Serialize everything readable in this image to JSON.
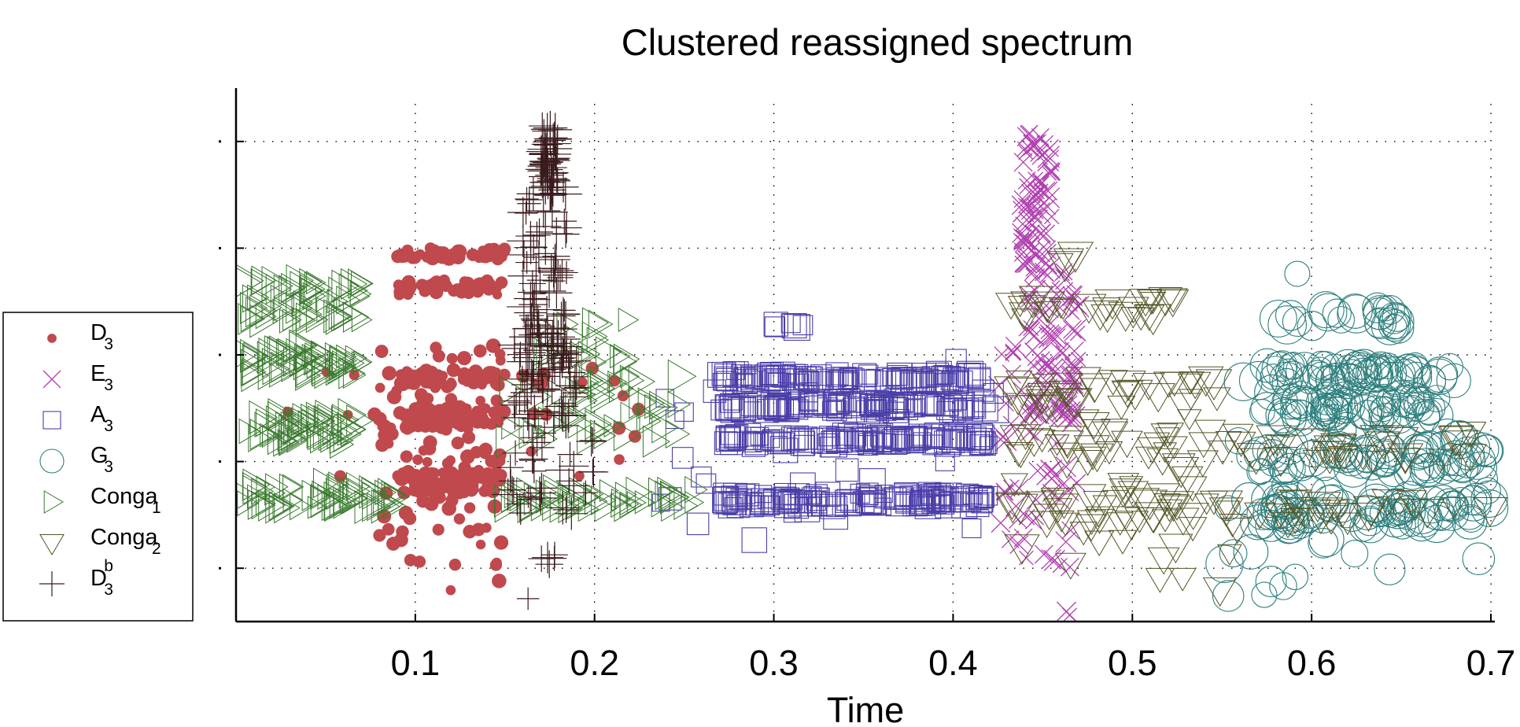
{
  "chart_data": {
    "type": "scatter",
    "title": "Clustered reassigned spectrum",
    "xlabel": "Time",
    "ylabel": "",
    "xlim": [
      0.0,
      0.7
    ],
    "ylim": [
      0.0,
      1.0
    ],
    "x_ticks": [
      0.1,
      0.2,
      0.3,
      0.4,
      0.5,
      0.6,
      0.7
    ],
    "x_tick_labels": [
      "0.1",
      "0.2",
      "0.3",
      "0.4",
      "0.5",
      "0.6",
      "0.7"
    ],
    "y_ticks": [
      0.1,
      0.3,
      0.5,
      0.7,
      0.9
    ],
    "y_tick_labels": [
      "",
      "",
      "",
      "",
      ""
    ],
    "grid": true,
    "legend_position": "left",
    "series": [
      {
        "name": "D",
        "sub": "3",
        "sup": "",
        "marker": "dot",
        "color": "#c0494d",
        "clusters": [
          {
            "x": [
              0.09,
              0.15
            ],
            "y": [
              0.68,
              0.7
            ],
            "n": 45
          },
          {
            "x": [
              0.09,
              0.15
            ],
            "y": [
              0.61,
              0.64
            ],
            "n": 40
          },
          {
            "x": [
              0.09,
              0.15
            ],
            "y": [
              0.44,
              0.47
            ],
            "n": 60
          },
          {
            "x": [
              0.09,
              0.15
            ],
            "y": [
              0.36,
              0.4
            ],
            "n": 60
          },
          {
            "x": [
              0.09,
              0.15
            ],
            "y": [
              0.24,
              0.28
            ],
            "n": 70
          },
          {
            "x": [
              0.08,
              0.15
            ],
            "y": [
              0.05,
              0.52
            ],
            "n": 110
          },
          {
            "x": [
              0.02,
              0.23
            ],
            "y": [
              0.24,
              0.5
            ],
            "n": 30
          }
        ]
      },
      {
        "name": "E",
        "sub": "3",
        "sup": "",
        "marker": "x",
        "color": "#b140b0",
        "clusters": [
          {
            "x": [
              0.438,
              0.455
            ],
            "y": [
              0.65,
              0.92
            ],
            "n": 80
          },
          {
            "x": [
              0.44,
              0.47
            ],
            "y": [
              0.38,
              0.66
            ],
            "n": 70
          },
          {
            "x": [
              0.425,
              0.47
            ],
            "y": [
              0.1,
              0.55
            ],
            "n": 70
          },
          {
            "x": [
              0.46,
              0.465
            ],
            "y": [
              0.01,
              0.02
            ],
            "n": 2
          }
        ]
      },
      {
        "name": "A",
        "sub": "3",
        "sup": "",
        "marker": "square",
        "color": "#4a3ea8",
        "clusters": [
          {
            "x": [
              0.27,
              0.42
            ],
            "y": [
              0.445,
              0.465
            ],
            "n": 110
          },
          {
            "x": [
              0.27,
              0.42
            ],
            "y": [
              0.395,
              0.415
            ],
            "n": 110
          },
          {
            "x": [
              0.27,
              0.42
            ],
            "y": [
              0.33,
              0.35
            ],
            "n": 110
          },
          {
            "x": [
              0.27,
              0.42
            ],
            "y": [
              0.215,
              0.24
            ],
            "n": 130
          },
          {
            "x": [
              0.29,
              0.32
            ],
            "y": [
              0.55,
              0.56
            ],
            "n": 6
          },
          {
            "x": [
              0.23,
              0.43
            ],
            "y": [
              0.14,
              0.5
            ],
            "n": 40
          }
        ]
      },
      {
        "name": "G",
        "sub": "3",
        "sup": "",
        "marker": "circle",
        "color": "#2d7f7d",
        "clusters": [
          {
            "x": [
              0.57,
              0.68
            ],
            "y": [
              0.45,
              0.48
            ],
            "n": 60
          },
          {
            "x": [
              0.57,
              0.67
            ],
            "y": [
              0.38,
              0.42
            ],
            "n": 60
          },
          {
            "x": [
              0.57,
              0.7
            ],
            "y": [
              0.28,
              0.33
            ],
            "n": 60
          },
          {
            "x": [
              0.56,
              0.7
            ],
            "y": [
              0.18,
              0.23
            ],
            "n": 70
          },
          {
            "x": [
              0.58,
              0.65
            ],
            "y": [
              0.55,
              0.59
            ],
            "n": 25
          },
          {
            "x": [
              0.55,
              0.7
            ],
            "y": [
              0.03,
              0.48
            ],
            "n": 50
          },
          {
            "x": [
              0.588,
              0.592
            ],
            "y": [
              0.65,
              0.66
            ],
            "n": 1
          }
        ]
      },
      {
        "name": "Conga",
        "sub": "1",
        "sup": "",
        "marker": "triangle-right",
        "color": "#3a7a2e",
        "clusters": [
          {
            "x": [
              0.005,
              0.07
            ],
            "y": [
              0.56,
              0.64
            ],
            "n": 60
          },
          {
            "x": [
              0.005,
              0.07
            ],
            "y": [
              0.46,
              0.52
            ],
            "n": 60
          },
          {
            "x": [
              0.005,
              0.07
            ],
            "y": [
              0.33,
              0.39
            ],
            "n": 60
          },
          {
            "x": [
              0.005,
              0.09
            ],
            "y": [
              0.21,
              0.26
            ],
            "n": 60
          },
          {
            "x": [
              0.15,
              0.25
            ],
            "y": [
              0.33,
              0.46
            ],
            "n": 50
          },
          {
            "x": [
              0.15,
              0.26
            ],
            "y": [
              0.21,
              0.25
            ],
            "n": 50
          },
          {
            "x": [
              0.17,
              0.22
            ],
            "y": [
              0.48,
              0.58
            ],
            "n": 20
          }
        ]
      },
      {
        "name": "Conga",
        "sub": "2",
        "sup": "",
        "marker": "triangle-down",
        "color": "#555526",
        "clusters": [
          {
            "x": [
              0.43,
              0.53
            ],
            "y": [
              0.57,
              0.61
            ],
            "n": 30
          },
          {
            "x": [
              0.43,
              0.55
            ],
            "y": [
              0.4,
              0.46
            ],
            "n": 40
          },
          {
            "x": [
              0.43,
              0.7
            ],
            "y": [
              0.3,
              0.36
            ],
            "n": 60
          },
          {
            "x": [
              0.43,
              0.7
            ],
            "y": [
              0.18,
              0.23
            ],
            "n": 60
          },
          {
            "x": [
              0.43,
              0.56
            ],
            "y": [
              0.06,
              0.4
            ],
            "n": 40
          },
          {
            "x": [
              0.46,
              0.47
            ],
            "y": [
              0.65,
              0.69
            ],
            "n": 4
          }
        ]
      },
      {
        "name": "D",
        "sub": "3",
        "sup": "b",
        "marker": "plus",
        "color": "#3a1a1c",
        "clusters": [
          {
            "x": [
              0.17,
              0.18
            ],
            "y": [
              0.82,
              0.93
            ],
            "n": 50
          },
          {
            "x": [
              0.16,
              0.185
            ],
            "y": [
              0.5,
              0.82
            ],
            "n": 80
          },
          {
            "x": [
              0.155,
              0.19
            ],
            "y": [
              0.38,
              0.55
            ],
            "n": 60
          },
          {
            "x": [
              0.15,
              0.2
            ],
            "y": [
              0.2,
              0.4
            ],
            "n": 40
          },
          {
            "x": [
              0.17,
              0.18
            ],
            "y": [
              0.1,
              0.13
            ],
            "n": 5
          },
          {
            "x": [
              0.162,
              0.166
            ],
            "y": [
              0.04,
              0.05
            ],
            "n": 1
          }
        ]
      }
    ]
  }
}
